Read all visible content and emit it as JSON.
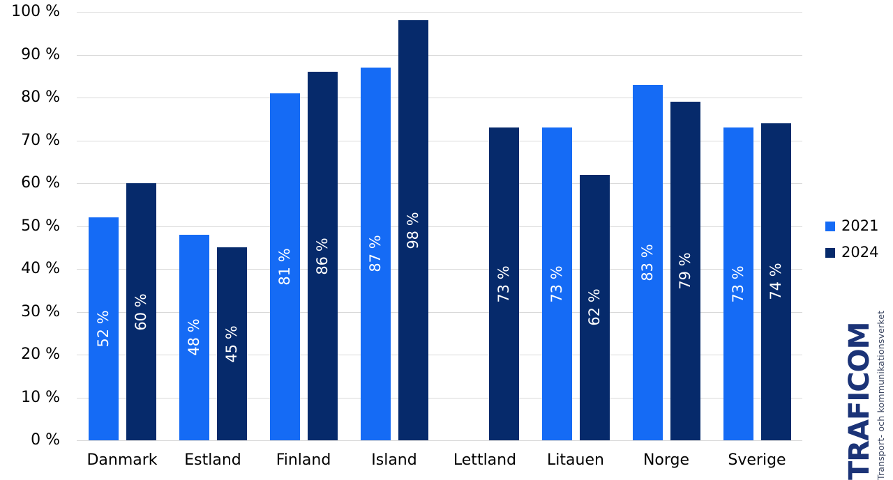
{
  "chart_data": {
    "type": "bar",
    "title": "",
    "categories": [
      "Danmark",
      "Estland",
      "Finland",
      "Island",
      "Lettland",
      "Litauen",
      "Norge",
      "Sverige"
    ],
    "series": [
      {
        "name": "2021",
        "color": "#156BF5",
        "values": [
          52,
          48,
          81,
          87,
          null,
          73,
          83,
          73
        ]
      },
      {
        "name": "2024",
        "color": "#062A6B",
        "values": [
          60,
          45,
          86,
          98,
          73,
          62,
          79,
          74
        ]
      }
    ],
    "value_suffix": " %",
    "bar_labels_visible": true,
    "bar_label_color": "#FFFFFF",
    "xlabel": "",
    "ylabel": "",
    "ylim": [
      0,
      100
    ],
    "ytick_labels": [
      "0 %",
      "10 %",
      "20 %",
      "30 %",
      "40 %",
      "50 %",
      "60 %",
      "70 %",
      "80 %",
      "90 %",
      "100 %"
    ],
    "grid": true,
    "grid_color": "#D9D9D9",
    "legend_position": "right"
  },
  "legend": {
    "items": [
      {
        "label": "2021",
        "color": "#156BF5"
      },
      {
        "label": "2024",
        "color": "#062A6B"
      }
    ]
  },
  "logo": {
    "name": "TRAFICOM",
    "subtitle": "Transport- och kommunikationsverket",
    "color": "#1B3377"
  }
}
